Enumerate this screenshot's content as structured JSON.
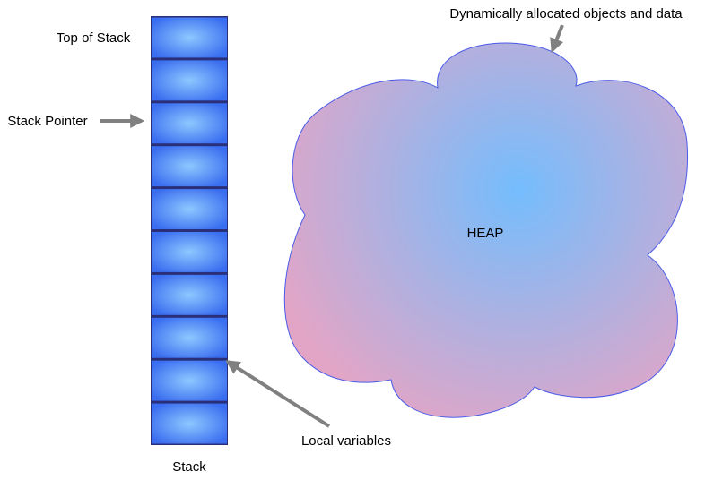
{
  "stack": {
    "title_label": "Stack",
    "top_label": "Top of Stack",
    "pointer_label": "Stack Pointer",
    "local_vars_label": "Local variables",
    "cell_count": 10,
    "pointer_cell_index": 2,
    "local_vars_cell_index": 8
  },
  "heap": {
    "label": "HEAP",
    "annotation": "Dynamically allocated objects and data"
  },
  "colors": {
    "stack_edge": "#2a2f7a",
    "stack_fill_center": "#8ec8ff",
    "stack_fill_edge": "#3a6ef0",
    "heap_stroke": "#4a5be8",
    "heap_fill_center": "#74bdfd",
    "heap_fill_edge": "#e3a5c6",
    "arrow": "#808080"
  }
}
